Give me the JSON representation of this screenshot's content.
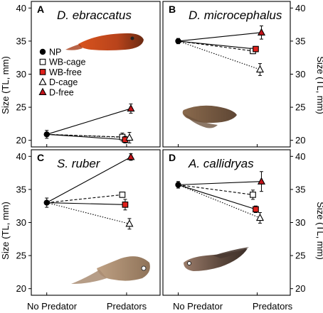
{
  "chart_data": [
    {
      "type": "line",
      "panel_letter": "A",
      "title": "D. ebraccatus",
      "x_categories": [
        "No Predator",
        "Predators"
      ],
      "ylabel": "Size (TL, mm)",
      "ylim": [
        19,
        41
      ],
      "yticks": [
        20,
        25,
        30,
        35,
        40
      ],
      "show_legend": true,
      "series": [
        {
          "name": "WB-cage",
          "marker": "open-square",
          "fill": "#ffffff",
          "line": "dashed",
          "values": [
            20.9,
            20.5
          ],
          "err": [
            0.6,
            0.6
          ]
        },
        {
          "name": "WB-free",
          "marker": "square",
          "fill": "#e0211c",
          "line": "solid",
          "values": [
            20.9,
            20.1
          ],
          "err": [
            0.6,
            0.5
          ]
        },
        {
          "name": "D-cage",
          "marker": "open-triangle",
          "fill": "#ffffff",
          "line": "dotted",
          "values": [
            20.9,
            20.4
          ],
          "err": [
            0.6,
            0.8
          ]
        },
        {
          "name": "D-free",
          "marker": "triangle",
          "fill": "#c4141a",
          "line": "solid",
          "values": [
            20.9,
            24.8
          ],
          "err": [
            0.6,
            0.7
          ]
        }
      ]
    },
    {
      "type": "line",
      "panel_letter": "B",
      "title": "D. microcephalus",
      "x_categories": [
        "No Predator",
        "Predators"
      ],
      "ylabel": "Size (TL, mm)",
      "ylim": [
        19,
        41
      ],
      "yticks": [
        20,
        25,
        30,
        35,
        40
      ],
      "series": [
        {
          "name": "WB-cage",
          "marker": "open-square",
          "fill": "#ffffff",
          "line": "dashed",
          "values": [
            35.0,
            33.5
          ],
          "err": [
            0.4,
            0.4
          ]
        },
        {
          "name": "WB-free",
          "marker": "square",
          "fill": "#e0211c",
          "line": "solid",
          "values": [
            35.0,
            33.8
          ],
          "err": [
            0.4,
            0.4
          ]
        },
        {
          "name": "D-cage",
          "marker": "open-triangle",
          "fill": "#ffffff",
          "line": "dotted",
          "values": [
            35.0,
            30.7
          ],
          "err": [
            0.4,
            0.9
          ]
        },
        {
          "name": "D-free",
          "marker": "triangle",
          "fill": "#c4141a",
          "line": "solid",
          "values": [
            35.0,
            36.3
          ],
          "err": [
            0.4,
            1.0
          ]
        }
      ]
    },
    {
      "type": "line",
      "panel_letter": "C",
      "title": "S. ruber",
      "x_categories": [
        "No Predator",
        "Predators"
      ],
      "ylabel": "Size (TL, mm)",
      "ylim": [
        19,
        41
      ],
      "yticks": [
        20,
        25,
        30,
        35,
        40
      ],
      "series": [
        {
          "name": "WB-cage",
          "marker": "open-square",
          "fill": "#ffffff",
          "line": "dashed",
          "values": [
            33.0,
            34.2
          ],
          "err": [
            0.7,
            0.4
          ]
        },
        {
          "name": "WB-free",
          "marker": "square",
          "fill": "#e0211c",
          "line": "solid",
          "values": [
            33.0,
            32.7
          ],
          "err": [
            0.7,
            0.8
          ]
        },
        {
          "name": "D-cage",
          "marker": "open-triangle",
          "fill": "#ffffff",
          "line": "dotted",
          "values": [
            33.0,
            29.8
          ],
          "err": [
            0.7,
            0.8
          ]
        },
        {
          "name": "D-free",
          "marker": "triangle",
          "fill": "#c4141a",
          "line": "solid",
          "values": [
            33.0,
            39.9
          ],
          "err": [
            0.7,
            0.5
          ]
        }
      ]
    },
    {
      "type": "line",
      "panel_letter": "D",
      "title": "A. callidryas",
      "x_categories": [
        "No Predator",
        "Predators"
      ],
      "ylabel": "Size (TL, mm)",
      "ylim": [
        19,
        41
      ],
      "yticks": [
        20,
        25,
        30,
        35,
        40
      ],
      "series": [
        {
          "name": "WB-cage",
          "marker": "open-square",
          "fill": "#ffffff",
          "line": "dashed",
          "values": [
            35.7,
            34.2
          ],
          "err": [
            0.5,
            0.7
          ]
        },
        {
          "name": "WB-free",
          "marker": "square",
          "fill": "#e0211c",
          "line": "solid",
          "values": [
            35.7,
            32.0
          ],
          "err": [
            0.5,
            0.5
          ]
        },
        {
          "name": "D-cage",
          "marker": "open-triangle",
          "fill": "#ffffff",
          "line": "dotted",
          "values": [
            35.7,
            30.7
          ],
          "err": [
            0.5,
            0.8
          ]
        },
        {
          "name": "D-free",
          "marker": "triangle",
          "fill": "#c4141a",
          "line": "solid",
          "values": [
            35.7,
            36.2
          ],
          "err": [
            0.5,
            1.5
          ]
        }
      ]
    }
  ],
  "legend": [
    {
      "label": "NP",
      "marker": "circle",
      "fill": "#000000"
    },
    {
      "label": "WB-cage",
      "marker": "open-square",
      "fill": "#ffffff"
    },
    {
      "label": "WB-free",
      "marker": "square",
      "fill": "#e0211c"
    },
    {
      "label": "D-cage",
      "marker": "open-triangle",
      "fill": "#ffffff"
    },
    {
      "label": "D-free",
      "marker": "triangle",
      "fill": "#c4141a"
    }
  ],
  "colors": {
    "axis": "#000000",
    "wb_free": "#e0211c",
    "d_free": "#c4141a"
  },
  "tadpole_photos": [
    "tadpole-photo-d-ebraccatus",
    "tadpole-photo-d-microcephalus",
    "tadpole-photo-s-ruber",
    "tadpole-photo-a-callidryas"
  ]
}
